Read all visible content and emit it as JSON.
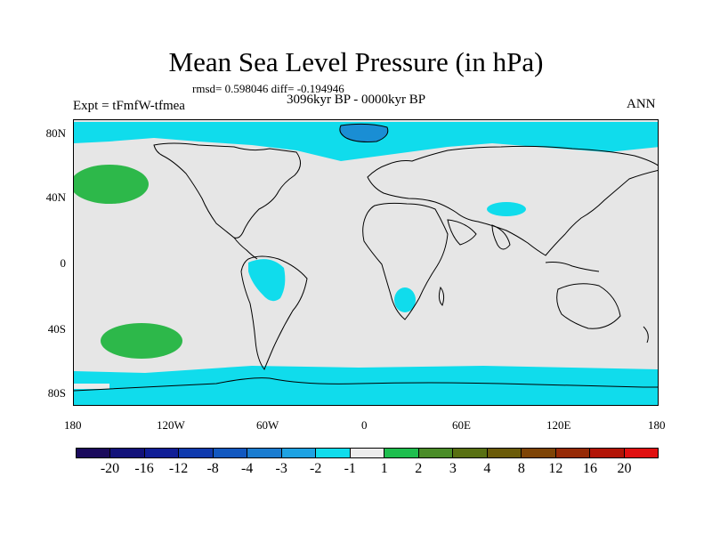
{
  "title": "Mean Sea Level Pressure (in hPa)",
  "stats": "rmsd= 0.598046 diff= -0.194946",
  "period": "3096kyr BP - 0000kyr BP",
  "experiment": "Expt = tFmfW-tfmea",
  "season": "ANN",
  "lon_ticks": [
    "180",
    "120W",
    "60W",
    "0",
    "60E",
    "120E",
    "180"
  ],
  "lat_ticks": [
    "80N",
    "40N",
    "0",
    "40S",
    "80S"
  ],
  "colorbar": {
    "colors": [
      "#1a0a5c",
      "#12127a",
      "#101e96",
      "#0f3aae",
      "#1258c0",
      "#1a7cd0",
      "#1ea2e2",
      "#10dcec",
      "#ececec",
      "#1ebe4e",
      "#4a8c28",
      "#587012",
      "#6a5a08",
      "#7e4406",
      "#962a06",
      "#b21406",
      "#e01010"
    ],
    "labels": [
      "-20",
      "-16",
      "-12",
      "-8",
      "-4",
      "-3",
      "-2",
      "-1",
      "1",
      "2",
      "3",
      "4",
      "8",
      "12",
      "16",
      "20"
    ]
  },
  "legend_colors": {
    "land_bg": "#e6e6e6",
    "neg_small": "#10dcec",
    "neg_mid": "#1a7cd0",
    "pos_small": "#2db84a"
  }
}
